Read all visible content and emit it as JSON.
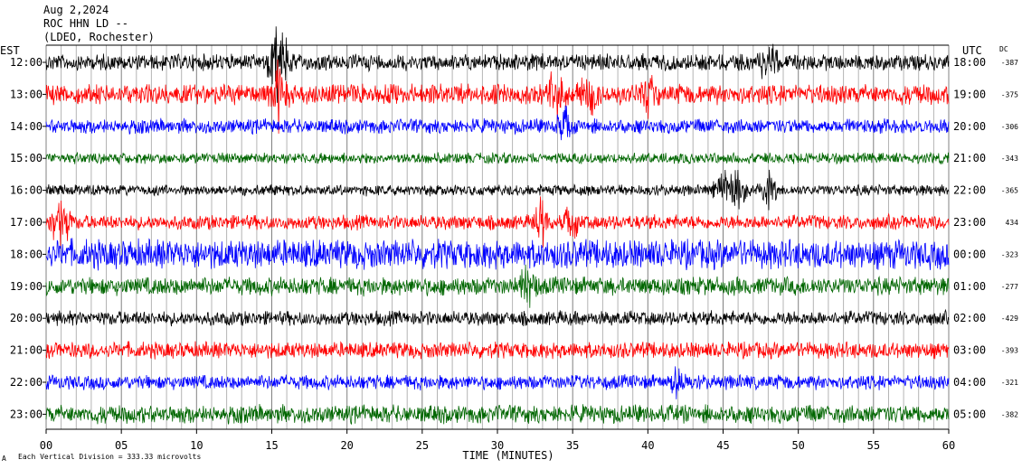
{
  "header": {
    "date": "Aug 2,2024",
    "station": "ROC HHN LD --",
    "network": "(LDEO, Rochester)",
    "left_zone": "EST",
    "right_zone": "UTC",
    "dc_label": "DC"
  },
  "footer": {
    "scale_note": "Each Vertical Division =  333.33 microvolts",
    "corner_mark": "A"
  },
  "chart_data": {
    "type": "line",
    "title": "",
    "xlabel": "TIME (MINUTES)",
    "ylabel": "",
    "xlim": [
      0,
      60
    ],
    "x_ticks": [
      "00",
      "05",
      "10",
      "15",
      "20",
      "25",
      "30",
      "35",
      "40",
      "45",
      "50",
      "55",
      "60"
    ],
    "grid": "vertical lines every minute",
    "rows": [
      {
        "est": "12:00",
        "utc": "18:00",
        "dc": "-387",
        "color": "#000000",
        "amp": 9,
        "events": [
          [
            15.3,
            45
          ],
          [
            16,
            30
          ],
          [
            48,
            40
          ]
        ]
      },
      {
        "est": "13:00",
        "utc": "19:00",
        "dc": "-375",
        "color": "#ff0000",
        "amp": 11,
        "events": [
          [
            15.5,
            45
          ],
          [
            34,
            35
          ],
          [
            36,
            30
          ],
          [
            40,
            22
          ]
        ]
      },
      {
        "est": "14:00",
        "utc": "20:00",
        "dc": "-306",
        "color": "#0000ff",
        "amp": 8,
        "events": [
          [
            34.5,
            22
          ]
        ]
      },
      {
        "est": "15:00",
        "utc": "21:00",
        "dc": "-343",
        "color": "#006600",
        "amp": 6,
        "events": []
      },
      {
        "est": "16:00",
        "utc": "22:00",
        "dc": "-365",
        "color": "#000000",
        "amp": 6,
        "events": [
          [
            45,
            25
          ],
          [
            46,
            30
          ],
          [
            48,
            25
          ]
        ]
      },
      {
        "est": "17:00",
        "utc": "23:00",
        "dc": "434",
        "color": "#ff0000",
        "amp": 8,
        "events": [
          [
            1,
            45
          ],
          [
            33,
            30
          ],
          [
            35,
            25
          ]
        ]
      },
      {
        "est": "18:00",
        "utc": "00:00",
        "dc": "-323",
        "color": "#0000ff",
        "amp": 16,
        "events": []
      },
      {
        "est": "19:00",
        "utc": "01:00",
        "dc": "-277",
        "color": "#006600",
        "amp": 10,
        "events": [
          [
            32,
            25
          ]
        ]
      },
      {
        "est": "20:00",
        "utc": "02:00",
        "dc": "-429",
        "color": "#000000",
        "amp": 8,
        "events": []
      },
      {
        "est": "21:00",
        "utc": "03:00",
        "dc": "-393",
        "color": "#ff0000",
        "amp": 9,
        "events": []
      },
      {
        "est": "22:00",
        "utc": "04:00",
        "dc": "-321",
        "color": "#0000ff",
        "amp": 8,
        "events": [
          [
            42,
            18
          ]
        ]
      },
      {
        "est": "23:00",
        "utc": "05:00",
        "dc": "-382",
        "color": "#006600",
        "amp": 10,
        "events": []
      }
    ]
  }
}
